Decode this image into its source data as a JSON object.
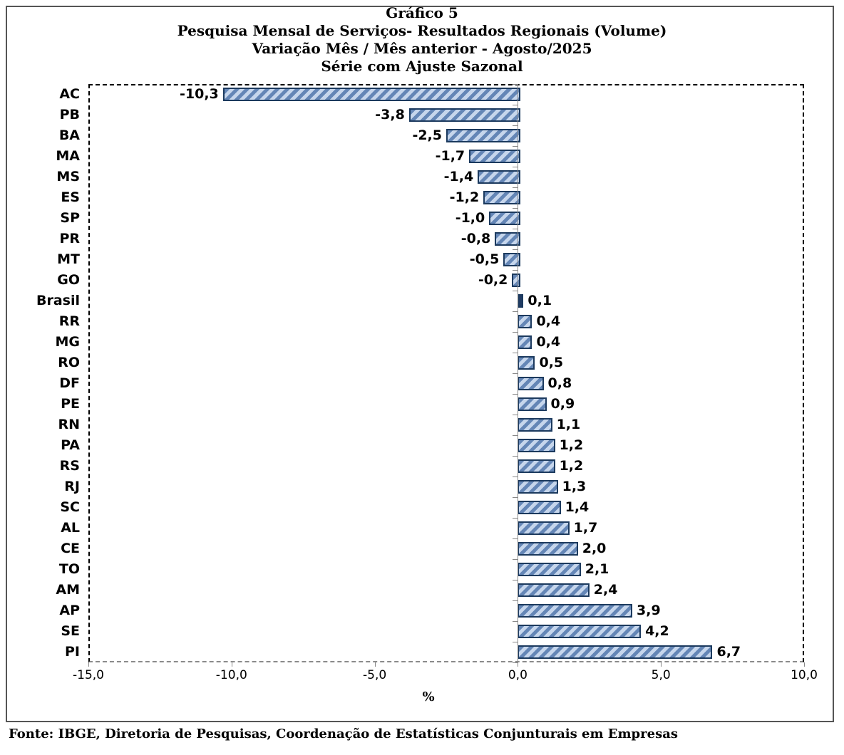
{
  "title": {
    "lines": [
      "Gráfico 5",
      "Pesquisa Mensal de Serviços- Resultados Regionais (Volume)",
      "Variação Mês / Mês anterior - Agosto/2025",
      "Série com Ajuste Sazonal"
    ]
  },
  "chart_data": {
    "type": "bar",
    "orientation": "horizontal",
    "categories": [
      "AC",
      "PB",
      "BA",
      "MA",
      "MS",
      "ES",
      "SP",
      "PR",
      "MT",
      "GO",
      "Brasil",
      "RR",
      "MG",
      "RO",
      "DF",
      "PE",
      "RN",
      "PA",
      "RS",
      "RJ",
      "SC",
      "AL",
      "CE",
      "TO",
      "AM",
      "AP",
      "SE",
      "PI"
    ],
    "values": [
      -10.3,
      -3.8,
      -2.5,
      -1.7,
      -1.4,
      -1.2,
      -1.0,
      -0.8,
      -0.5,
      -0.2,
      0.1,
      0.4,
      0.4,
      0.5,
      0.8,
      0.9,
      1.1,
      1.2,
      1.2,
      1.3,
      1.4,
      1.7,
      2.0,
      2.1,
      2.4,
      3.9,
      4.2,
      6.7
    ],
    "value_labels": [
      "-10,3",
      "-3,8",
      "-2,5",
      "-1,7",
      "-1,4",
      "-1,2",
      "-1,0",
      "-0,8",
      "-0,5",
      "-0,2",
      "0,1",
      "0,4",
      "0,4",
      "0,5",
      "0,8",
      "0,9",
      "1,1",
      "1,2",
      "1,2",
      "1,3",
      "1,4",
      "1,7",
      "2,0",
      "2,1",
      "2,4",
      "3,9",
      "4,2",
      "6,7"
    ],
    "highlight_category": "Brasil",
    "xlabel": "%",
    "xlim": [
      -15,
      10
    ],
    "x_ticks": [
      -15,
      -10,
      -5,
      0,
      5,
      10
    ],
    "x_tick_labels": [
      "-15,0",
      "-10,0",
      "-5,0",
      "0,0",
      "5,0",
      "10,0"
    ],
    "grid": false,
    "legend": null,
    "plot_border_style": "dashed"
  },
  "colors": {
    "bar_fill": "#c6d6ec",
    "bar_hatch": "#6486b6",
    "bar_border": "#1c3a5e",
    "highlight_fill": "#203b63",
    "axis_line": "#888888",
    "frame_border": "#555555"
  },
  "footer": {
    "source": "Fonte: IBGE, Diretoria de Pesquisas, Coordenação de Estatísticas Conjunturais em Empresas"
  }
}
